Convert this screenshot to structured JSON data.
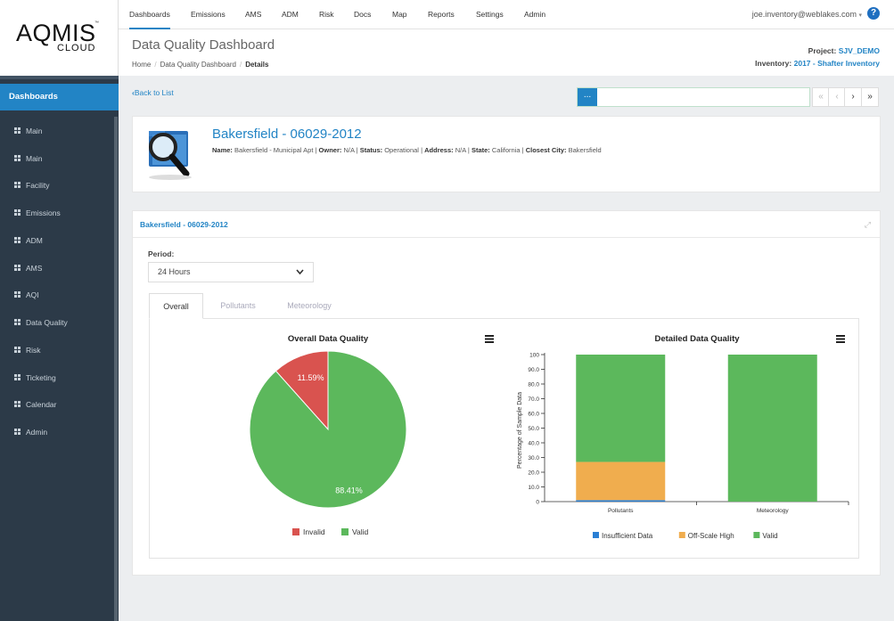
{
  "logo": {
    "line1": "AQMIS",
    "line2": "CLOUD",
    "tm": "™"
  },
  "topnav": {
    "items": [
      "Dashboards",
      "Emissions",
      "AMS",
      "ADM",
      "Risk",
      "Docs",
      "Map",
      "Reports",
      "Settings",
      "Admin"
    ],
    "active": "Dashboards",
    "user": "joe.inventory@weblakes.com",
    "user_caret": "▾",
    "help": "?"
  },
  "sidebar": {
    "header": "Dashboards",
    "items": [
      "Main",
      "Main",
      "Facility",
      "Emissions",
      "ADM",
      "AMS",
      "AQI",
      "Data Quality",
      "Risk",
      "Ticketing",
      "Calendar",
      "Admin"
    ]
  },
  "page": {
    "title": "Data Quality Dashboard",
    "breadcrumb": [
      "Home",
      "Data Quality Dashboard",
      "Details"
    ],
    "breadcrumb_sep": "/",
    "project_label": "Project:",
    "project_value": "SJV_DEMO",
    "inventory_label": "Inventory:",
    "inventory_value": "2017 - Shafter Inventory",
    "back": "Back to List",
    "back_icon": "‹",
    "search_btn": "...",
    "search_value": "",
    "pager": [
      "«",
      "‹",
      "›",
      "»"
    ]
  },
  "site": {
    "name": "Bakersfield - 06029-2012",
    "details": [
      {
        "label": "Name:",
        "value": "Bakersfield - Municipal Apt"
      },
      {
        "label": "Owner:",
        "value": "N/A"
      },
      {
        "label": "Status:",
        "value": "Operational"
      },
      {
        "label": "Address:",
        "value": "N/A"
      },
      {
        "label": "State:",
        "value": "California"
      },
      {
        "label": "Closest City:",
        "value": "Bakersfield"
      }
    ]
  },
  "panel": {
    "title": "Bakersfield - 06029-2012",
    "expand_icon": "⤢",
    "period_label": "Period:",
    "period_value": "24 Hours",
    "period_chevron": "⌄",
    "tabs": [
      "Overall",
      "Pollutants",
      "Meteorology"
    ],
    "active_tab": "Overall"
  },
  "chart_data": [
    {
      "type": "pie",
      "title": "Overall Data Quality",
      "labels": [
        "Invalid",
        "Valid"
      ],
      "values": [
        11.59,
        88.41
      ],
      "value_labels": [
        "11.59%",
        "88.41%"
      ],
      "colors": [
        "#d9534f",
        "#5cb85c"
      ],
      "legend": "bottom",
      "menu_icon": "≡"
    },
    {
      "type": "bar",
      "stacked": true,
      "title": "Detailed Data Quality",
      "categories": [
        "Pollutants",
        "Meteorology"
      ],
      "ylabel": "Percentage of Sample Data",
      "ylim": [
        0,
        100
      ],
      "yticks": [
        0,
        10,
        20,
        30,
        40,
        50,
        60,
        70,
        80,
        90,
        100
      ],
      "series": [
        {
          "name": "Insufficient Data",
          "values": [
            1,
            0
          ],
          "color": "#2a7fd4"
        },
        {
          "name": "Off-Scale High",
          "values": [
            26,
            0
          ],
          "color": "#f0ad4e"
        },
        {
          "name": "Valid",
          "values": [
            73,
            100
          ],
          "color": "#5cb85c"
        }
      ],
      "legend": "bottom",
      "menu_icon": "≡"
    }
  ]
}
